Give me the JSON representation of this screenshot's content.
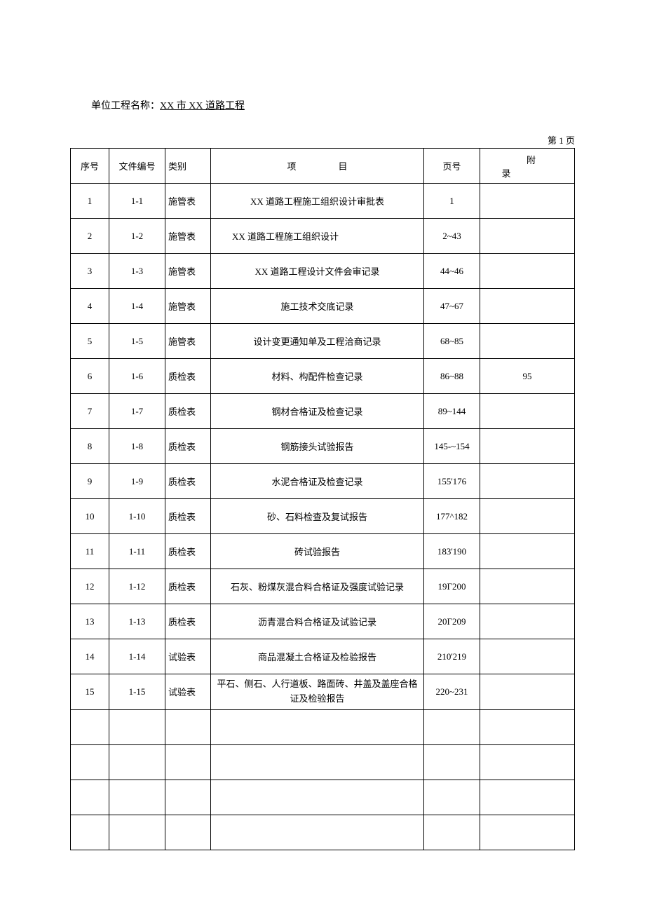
{
  "header": {
    "label": "单位工程名称：",
    "value": "XX 市 XX 道路工程"
  },
  "pageIndicator": "第 1 页",
  "table": {
    "columns": {
      "seq": "序号",
      "docno": "文件编号",
      "type": "类别",
      "item": "项目",
      "pageno": "页号",
      "appendix": "附录"
    },
    "rows": [
      {
        "seq": "1",
        "docno": "1-1",
        "type": "施管表",
        "item": "XX 道路工程施工组织设计审批表",
        "pageno": "1",
        "appendix": ""
      },
      {
        "seq": "2",
        "docno": "1-2",
        "type": "施管表",
        "item": "XX 道路工程施工组织设计",
        "pageno": "2~43",
        "appendix": "",
        "itemAlign": "left"
      },
      {
        "seq": "3",
        "docno": "1-3",
        "type": "施管表",
        "item": "XX 道路工程设计文件会审记录",
        "pageno": "44~46",
        "appendix": ""
      },
      {
        "seq": "4",
        "docno": "1-4",
        "type": "施管表",
        "item": "施工技术交底记录",
        "pageno": "47~67",
        "appendix": ""
      },
      {
        "seq": "5",
        "docno": "1-5",
        "type": "施管表",
        "item": "设计变更通知单及工程洽商记录",
        "pageno": "68~85",
        "appendix": ""
      },
      {
        "seq": "6",
        "docno": "1-6",
        "type": "质检表",
        "item": "材料、构配件检查记录",
        "pageno": "86~88",
        "appendix": "95"
      },
      {
        "seq": "7",
        "docno": "1-7",
        "type": "质检表",
        "item": "钢材合格证及检查记录",
        "pageno": "89~144",
        "appendix": ""
      },
      {
        "seq": "8",
        "docno": "1-8",
        "type": "质检表",
        "item": "钢筋接头试验报告",
        "pageno": "145-~154",
        "appendix": ""
      },
      {
        "seq": "9",
        "docno": "1-9",
        "type": "质检表",
        "item": "水泥合格证及检查记录",
        "pageno": "155'176",
        "appendix": ""
      },
      {
        "seq": "10",
        "docno": "1-10",
        "type": "质检表",
        "item": "砂、石料检查及复试报告",
        "pageno": "177^182",
        "appendix": ""
      },
      {
        "seq": "11",
        "docno": "1-11",
        "type": "质检表",
        "item": "砖试验报告",
        "pageno": "183'190",
        "appendix": ""
      },
      {
        "seq": "12",
        "docno": "1-12",
        "type": "质检表",
        "item": "石灰、粉煤灰混合料合格证及强度试验记录",
        "pageno": "19Γ200",
        "appendix": ""
      },
      {
        "seq": "13",
        "docno": "1-13",
        "type": "质检表",
        "item": "沥青混合料合格证及试验记录",
        "pageno": "20Γ209",
        "appendix": ""
      },
      {
        "seq": "14",
        "docno": "1-14",
        "type": "试验表",
        "item": "商品混凝土合格证及检验报告",
        "pageno": "210'219",
        "appendix": ""
      },
      {
        "seq": "15",
        "docno": "1-15",
        "type": "试验表",
        "item": "平石、侧石、人行道板、路面砖、井盖及盖座合格证及检验报告",
        "pageno": "220~231",
        "appendix": "",
        "multiline": true
      },
      {
        "seq": "",
        "docno": "",
        "type": "",
        "item": "",
        "pageno": "",
        "appendix": ""
      },
      {
        "seq": "",
        "docno": "",
        "type": "",
        "item": "",
        "pageno": "",
        "appendix": ""
      },
      {
        "seq": "",
        "docno": "",
        "type": "",
        "item": "",
        "pageno": "",
        "appendix": ""
      },
      {
        "seq": "",
        "docno": "",
        "type": "",
        "item": "",
        "pageno": "",
        "appendix": ""
      }
    ]
  }
}
